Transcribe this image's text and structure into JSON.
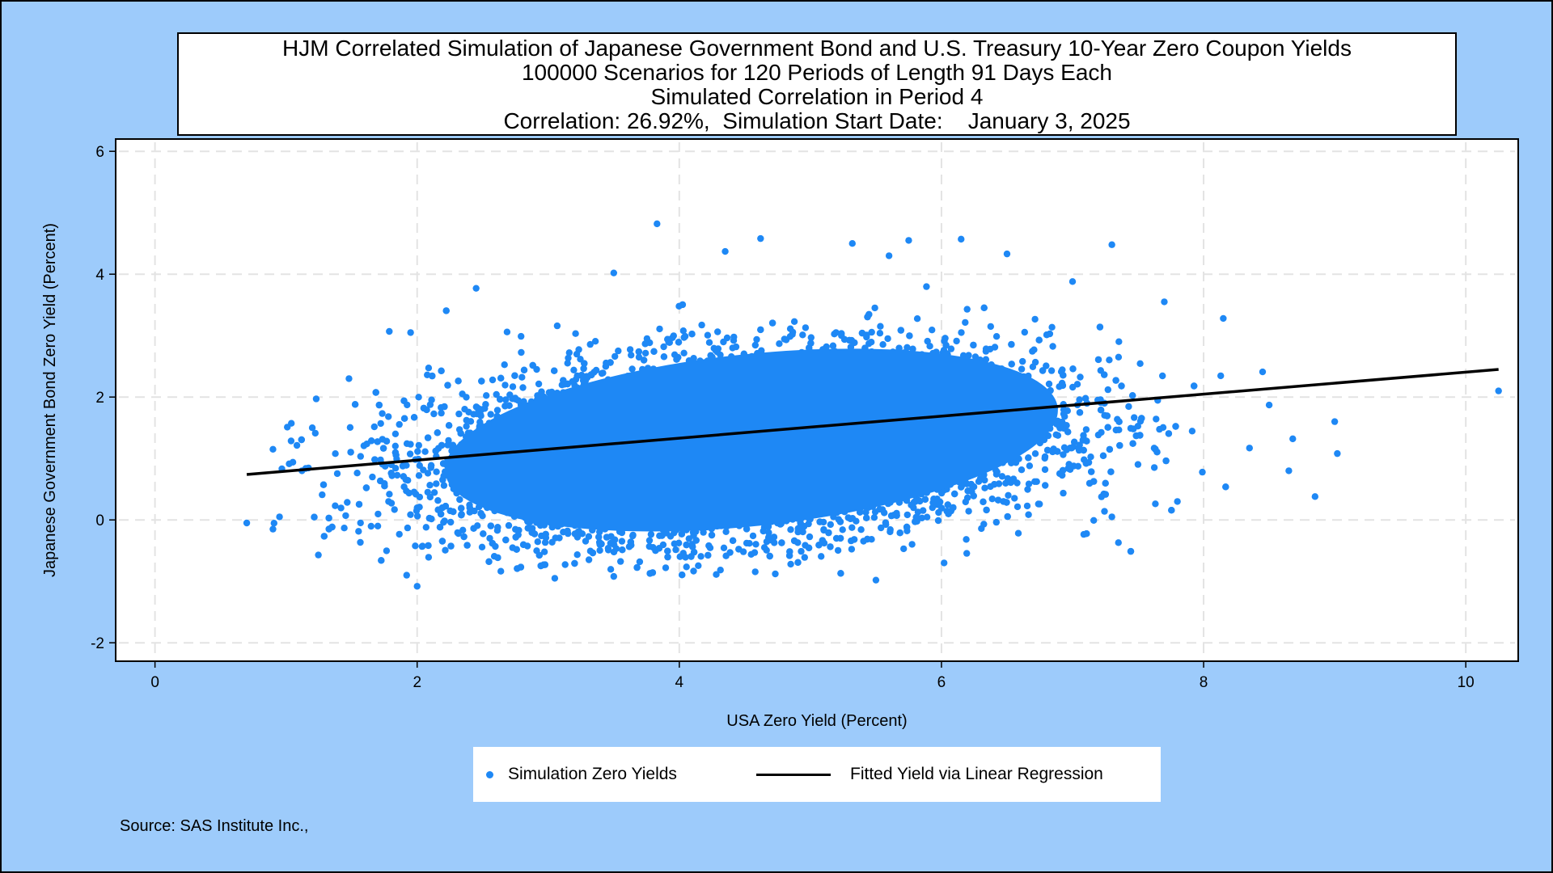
{
  "colors": {
    "background": "#9dcbfb",
    "points": "#1e88f5",
    "fit_line": "#000000",
    "grid": "#e3e3e3"
  },
  "title_lines": [
    "HJM Correlated Simulation of Japanese Government Bond and U.S. Treasury 10-Year Zero Coupon Yields",
    "100000 Scenarios for 120 Periods of Length 91 Days Each",
    "Simulated Correlation in Period 4",
    "Correlation: 26.92%,  Simulation Start Date:    January 3, 2025"
  ],
  "legend": {
    "simulation_label": "Simulation Zero Yields",
    "fit_label": "Fitted Yield via Linear Regression"
  },
  "source": "Source: SAS Institute Inc.,",
  "chart_data": {
    "type": "scatter",
    "xlabel": "USA Zero Yield (Percent)",
    "ylabel": "Japanese Government Bond Zero Yield (Percent)",
    "xlim": [
      -0.3,
      10.4
    ],
    "ylim": [
      -2.3,
      6.2
    ],
    "xticks": [
      0,
      2,
      4,
      6,
      8,
      10
    ],
    "yticks": [
      -2,
      0,
      2,
      4,
      6
    ],
    "grid": true,
    "legend_position": "bottom",
    "series": [
      {
        "name": "Simulation Zero Yields",
        "kind": "scatter",
        "points": [
          [
            3.83,
            4.82
          ],
          [
            4.62,
            4.58
          ],
          [
            5.32,
            4.5
          ],
          [
            5.75,
            4.55
          ],
          [
            6.15,
            4.57
          ],
          [
            7.3,
            4.48
          ],
          [
            6.5,
            4.33
          ],
          [
            4.35,
            4.37
          ],
          [
            5.6,
            4.3
          ],
          [
            1.95,
            3.05
          ],
          [
            2.45,
            3.77
          ],
          [
            3.5,
            4.02
          ],
          [
            7.0,
            3.88
          ],
          [
            7.7,
            3.55
          ],
          [
            8.15,
            3.28
          ],
          [
            8.45,
            2.41
          ],
          [
            8.5,
            1.87
          ],
          [
            9.0,
            1.6
          ],
          [
            10.25,
            2.1
          ],
          [
            9.02,
            1.08
          ],
          [
            8.85,
            0.38
          ],
          [
            8.65,
            0.8
          ],
          [
            8.68,
            1.32
          ],
          [
            8.35,
            1.17
          ],
          [
            0.7,
            -0.05
          ],
          [
            0.9,
            -0.15
          ],
          [
            0.95,
            0.05
          ],
          [
            0.9,
            1.15
          ],
          [
            1.2,
            1.5
          ],
          [
            1.23,
            1.97
          ],
          [
            1.48,
            2.3
          ],
          [
            1.92,
            -0.9
          ],
          [
            2.0,
            -1.08
          ],
          [
            3.5,
            -0.92
          ],
          [
            5.5,
            -0.98
          ],
          [
            6.02,
            -0.7
          ],
          [
            7.35,
            -0.37
          ],
          [
            7.3,
            0.05
          ],
          [
            7.8,
            0.3
          ],
          [
            4.85,
            -0.72
          ],
          [
            3.05,
            -0.95
          ],
          [
            1.7,
            -0.1
          ]
        ],
        "cloud": {
          "description": "Dense cloud of 100000 simulated points",
          "center": [
            4.5,
            1.2
          ],
          "x_range": [
            1.2,
            7.9
          ],
          "y_range": [
            -0.9,
            3.8
          ]
        }
      },
      {
        "name": "Fitted Yield via Linear Regression",
        "kind": "line",
        "points": [
          [
            0.7,
            0.74
          ],
          [
            10.25,
            2.45
          ]
        ]
      }
    ]
  }
}
